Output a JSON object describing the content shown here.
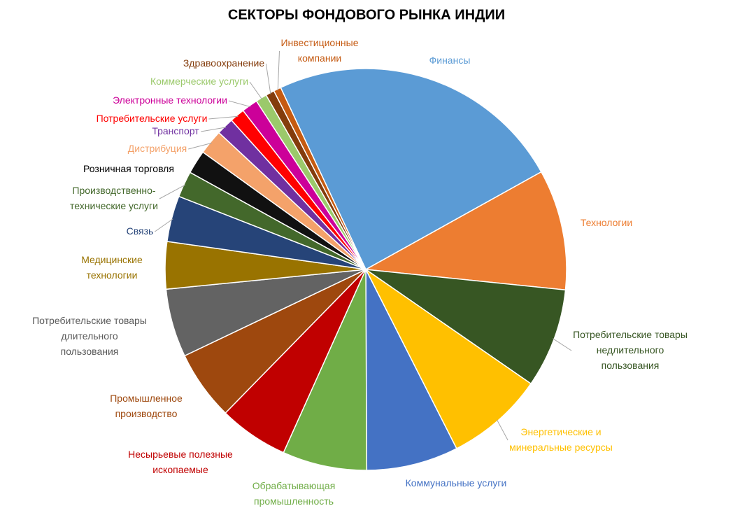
{
  "chart_data": {
    "type": "pie",
    "title": "СЕКТОРЫ ФОНДОВОГО РЫНКА ИНДИИ",
    "categories": [
      "Финансы",
      "Технологии",
      "Потребительские товары\nнедлительного\nпользования",
      "Энергетические и\nминеральные ресурсы",
      "Коммунальные услуги",
      "Обрабатывающая\nпромышленность",
      "Несырьевые полезные\nископаемые",
      "Промышленное\nпроизводство",
      "Потребительские товары\nдлительного\nпользования",
      "Медицинские\nтехнологии",
      "Связь",
      "Производственно-\nтехнические услуги",
      "Розничная торговля",
      "Дистрибуция",
      "Транспорт",
      "Потребительские услуги",
      "Электронные технологии",
      "Коммерческие услуги",
      "Здравоохранение",
      "Инвестиционные\nкомпании"
    ],
    "values": [
      23.9,
      9.7,
      8.0,
      7.9,
      7.4,
      6.8,
      5.6,
      5.6,
      5.5,
      3.8,
      3.7,
      2.1,
      1.9,
      2.0,
      1.4,
      1.2,
      1.3,
      0.9,
      0.7,
      0.6
    ],
    "colors": [
      "#5b9bd5",
      "#ed7d31",
      "#375623",
      "#ffc000",
      "#4472c4",
      "#70ad47",
      "#c00000",
      "#9e480e",
      "#636363",
      "#997300",
      "#264478",
      "#43682b",
      "#111111",
      "#f4a26a",
      "#7030a0",
      "#ff0000",
      "#cc0099",
      "#9bc96b",
      "#843c0c",
      "#c55a11"
    ],
    "label_colors": [
      "#5b9bd5",
      "#ed7d31",
      "#375623",
      "#ffc000",
      "#4472c4",
      "#70ad47",
      "#c00000",
      "#9e480e",
      "#595959",
      "#997300",
      "#264478",
      "#43682b",
      "#000000",
      "#f4a26a",
      "#7030a0",
      "#ff0000",
      "#cc0099",
      "#9bc96b",
      "#843c0c",
      "#c55a11"
    ]
  }
}
